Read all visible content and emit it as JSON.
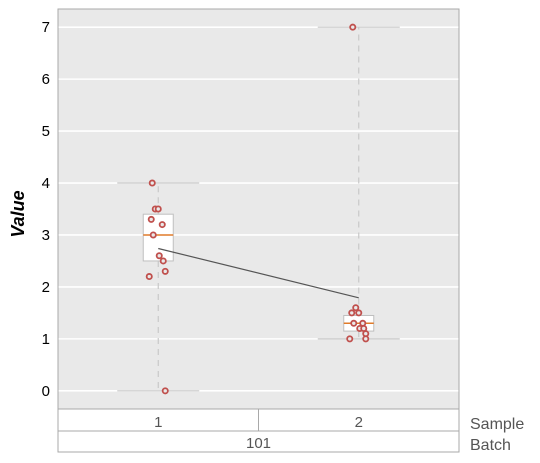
{
  "chart_data": {
    "type": "box",
    "ylabel": "Value",
    "ylim": [
      -0.35,
      7.35
    ],
    "yticks": [
      0,
      1,
      2,
      3,
      4,
      5,
      6,
      7
    ],
    "grid": true,
    "x_rows": {
      "sample": {
        "title": "Sample",
        "labels": [
          "1",
          "2"
        ]
      },
      "batch": {
        "title": "Batch",
        "labels": [
          "101"
        ]
      }
    },
    "groups": [
      {
        "sample": "1",
        "batch": "101",
        "whisker_low": 0,
        "q1": 2.5,
        "median": 3.0,
        "q3": 3.4,
        "whisker_high": 4,
        "mean": 2.74,
        "points": [
          4.0,
          3.5,
          3.5,
          3.3,
          3.2,
          3.0,
          2.6,
          2.5,
          2.3,
          2.2,
          0.0
        ]
      },
      {
        "sample": "2",
        "batch": "101",
        "whisker_low": 1,
        "q1": 1.15,
        "median": 1.3,
        "q3": 1.45,
        "whisker_high": 7,
        "mean": 1.79,
        "points": [
          7.0,
          1.6,
          1.5,
          1.5,
          1.3,
          1.3,
          1.2,
          1.2,
          1.1,
          1.0,
          1.0
        ]
      }
    ],
    "colors": {
      "plot_bg": "#e9e9e9",
      "grid": "#ffffff",
      "box_fill": "#ffffff",
      "box_edge": "#bfbfbf",
      "whisker": "#c8c8c8",
      "median": "#e07b2a",
      "point": "#c0504d",
      "mean_line": "#555555",
      "frame": "#a9a9a9"
    }
  }
}
